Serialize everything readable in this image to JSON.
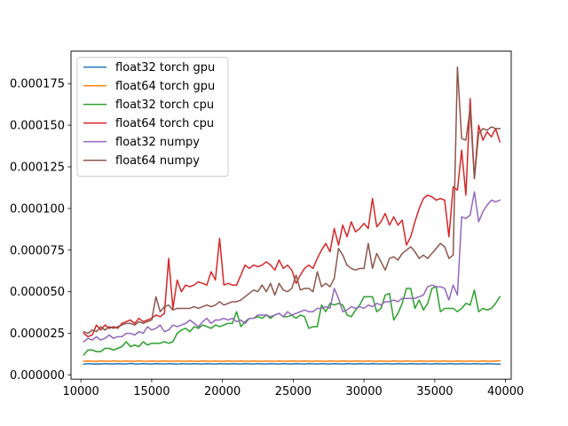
{
  "chart_data": {
    "type": "line",
    "xlim": [
      9300,
      40400
    ],
    "ylim": [
      -2.5e-06,
      0.0001945
    ],
    "x_ticks": [
      10000,
      15000,
      20000,
      25000,
      30000,
      35000,
      40000
    ],
    "y_ticks": [
      0,
      2.5e-05,
      5e-05,
      7.5e-05,
      0.0001,
      0.000125,
      0.00015,
      0.000175
    ],
    "x_tick_labels": [
      "10000",
      "15000",
      "20000",
      "25000",
      "30000",
      "35000",
      "40000"
    ],
    "y_tick_labels": [
      "0.000000",
      "0.000025",
      "0.000050",
      "0.000075",
      "0.000100",
      "0.000125",
      "0.000150",
      "0.000175"
    ],
    "grid": false,
    "legend_position": "upper-left",
    "x": [
      10200,
      10500,
      10800,
      11100,
      11400,
      11700,
      12000,
      12300,
      12600,
      12900,
      13200,
      13500,
      13800,
      14100,
      14400,
      14700,
      15000,
      15300,
      15600,
      15900,
      16200,
      16500,
      16800,
      17100,
      17400,
      17700,
      18000,
      18300,
      18600,
      18900,
      19200,
      19500,
      19800,
      20100,
      20400,
      20700,
      21000,
      21300,
      21600,
      21900,
      22200,
      22500,
      22800,
      23100,
      23400,
      23700,
      24000,
      24300,
      24600,
      24900,
      25200,
      25500,
      25800,
      26100,
      26400,
      26700,
      27000,
      27300,
      27600,
      27900,
      28200,
      28500,
      28800,
      29100,
      29400,
      29700,
      30000,
      30300,
      30600,
      30900,
      31200,
      31500,
      31800,
      32100,
      32400,
      32700,
      33000,
      33300,
      33600,
      33900,
      34200,
      34500,
      34800,
      35100,
      35400,
      35700,
      36000,
      36300,
      36600,
      36900,
      37200,
      37500,
      37800,
      38100,
      38400,
      38700,
      39000,
      39300,
      39600
    ],
    "series": [
      {
        "name": "float32 torch gpu",
        "color": "#1f77b4",
        "values": [
          6.5e-06,
          6.8e-06,
          6.6e-06,
          6.7e-06,
          6.6e-06,
          6.8e-06,
          6.7e-06,
          6.6e-06,
          6.8e-06,
          6.7e-06,
          6.6e-06,
          6.9e-06,
          6.7e-06,
          6.6e-06,
          6.8e-06,
          6.7e-06,
          6.6e-06,
          6.8e-06,
          6.7e-06,
          6.6e-06,
          6.8e-06,
          6.7e-06,
          6.5e-06,
          6.8e-06,
          6.7e-06,
          6.6e-06,
          6.8e-06,
          6.7e-06,
          6.6e-06,
          6.8e-06,
          6.7e-06,
          6.6e-06,
          6.8e-06,
          6.7e-06,
          6.6e-06,
          6.8e-06,
          6.7e-06,
          6.6e-06,
          6.8e-06,
          6.7e-06,
          6.6e-06,
          6.8e-06,
          6.7e-06,
          6.6e-06,
          6.8e-06,
          6.7e-06,
          6.6e-06,
          6.8e-06,
          6.7e-06,
          6.6e-06,
          6.8e-06,
          6.7e-06,
          6.6e-06,
          6.8e-06,
          6.7e-06,
          6.6e-06,
          6.8e-06,
          6.7e-06,
          6.6e-06,
          6.8e-06,
          6.7e-06,
          6.6e-06,
          6.8e-06,
          6.7e-06,
          6.6e-06,
          6.8e-06,
          6.7e-06,
          6.6e-06,
          6.8e-06,
          6.7e-06,
          6.6e-06,
          6.8e-06,
          6.7e-06,
          6.6e-06,
          6.8e-06,
          6.7e-06,
          6.6e-06,
          6.8e-06,
          6.7e-06,
          6.6e-06,
          6.8e-06,
          6.7e-06,
          6.6e-06,
          6.8e-06,
          6.7e-06,
          6.6e-06,
          6.8e-06,
          6.7e-06,
          6.6e-06,
          6.8e-06,
          6.7e-06,
          6.6e-06,
          6.8e-06,
          6.7e-06,
          6.6e-06,
          6.8e-06,
          6.7e-06,
          6.6e-06,
          6.5e-06
        ]
      },
      {
        "name": "float64 torch gpu",
        "color": "#ff7f0e",
        "values": [
          8.2e-06,
          8.4e-06,
          8.3e-06,
          8.2e-06,
          8.4e-06,
          8.3e-06,
          8.2e-06,
          8.5e-06,
          8.3e-06,
          8.2e-06,
          8.4e-06,
          8.3e-06,
          8.2e-06,
          8.5e-06,
          8.3e-06,
          8.2e-06,
          8.4e-06,
          8.3e-06,
          8.2e-06,
          8.4e-06,
          8.3e-06,
          8.2e-06,
          8.4e-06,
          8.3e-06,
          8.2e-06,
          8.4e-06,
          8.3e-06,
          8.2e-06,
          8.4e-06,
          8.3e-06,
          8.2e-06,
          8.4e-06,
          8.3e-06,
          8.2e-06,
          8.4e-06,
          8.3e-06,
          8.2e-06,
          8.4e-06,
          8.3e-06,
          8.2e-06,
          8.4e-06,
          8.3e-06,
          8.2e-06,
          8.4e-06,
          8.3e-06,
          8.2e-06,
          8.4e-06,
          8.3e-06,
          8.2e-06,
          8.4e-06,
          8.3e-06,
          8.2e-06,
          8.4e-06,
          8.3e-06,
          8.2e-06,
          8.4e-06,
          8.3e-06,
          8.2e-06,
          8.4e-06,
          8.3e-06,
          8.2e-06,
          8.4e-06,
          8.3e-06,
          8.2e-06,
          8.4e-06,
          8.3e-06,
          8.2e-06,
          8.4e-06,
          8.3e-06,
          8.2e-06,
          8.4e-06,
          8.3e-06,
          8.2e-06,
          8.4e-06,
          8.3e-06,
          8.2e-06,
          8.4e-06,
          8.3e-06,
          8.2e-06,
          8.4e-06,
          8.3e-06,
          8.2e-06,
          8.4e-06,
          8.3e-06,
          8.2e-06,
          8.4e-06,
          8.3e-06,
          8.2e-06,
          8.4e-06,
          8.3e-06,
          8.2e-06,
          8.4e-06,
          8.3e-06,
          8.2e-06,
          8.4e-06,
          8.3e-06,
          8.2e-06,
          8.4e-06,
          8.5e-06
        ]
      },
      {
        "name": "float32 torch cpu",
        "color": "#2ca02c",
        "values": [
          1.2e-05,
          1.5e-05,
          1.5e-05,
          1.4e-05,
          1.4e-05,
          1.6e-05,
          1.6e-05,
          1.5e-05,
          1.6e-05,
          1.7e-05,
          2e-05,
          1.7e-05,
          1.8e-05,
          1.7e-05,
          2e-05,
          1.8e-05,
          1.9e-05,
          1.9e-05,
          1.9e-05,
          2e-05,
          1.9e-05,
          2e-05,
          2.5e-05,
          2.7e-05,
          2.8e-05,
          2.6e-05,
          2.9e-05,
          2.8e-05,
          3e-05,
          2.9e-05,
          2.8e-05,
          3e-05,
          2.9e-05,
          3e-05,
          3.1e-05,
          3.1e-05,
          3.8e-05,
          2.9e-05,
          3.2e-05,
          3.4e-05,
          3.4e-05,
          3.5e-05,
          3.4e-05,
          3.6e-05,
          3.4e-05,
          3.6e-05,
          3.7e-05,
          3.5e-05,
          3.5e-05,
          3.6e-05,
          3.4e-05,
          3.6e-05,
          3.5e-05,
          2.8e-05,
          2.9e-05,
          2.9e-05,
          4.2e-05,
          3.8e-05,
          4.3e-05,
          4.2e-05,
          4.3e-05,
          4.2e-05,
          3.6e-05,
          3.5e-05,
          3.9e-05,
          4.2e-05,
          4.7e-05,
          4.7e-05,
          4.7e-05,
          3.8e-05,
          4e-05,
          4.8e-05,
          4.9e-05,
          3.3e-05,
          3.7e-05,
          4.3e-05,
          5.2e-05,
          5.2e-05,
          4e-05,
          4.5e-05,
          3.9e-05,
          4.3e-05,
          5.2e-05,
          5.3e-05,
          3.8e-05,
          4e-05,
          4e-05,
          4e-05,
          3.8e-05,
          4e-05,
          4.3e-05,
          4.2e-05,
          5.1e-05,
          3.8e-05,
          4e-05,
          3.9e-05,
          4e-05,
          4.3e-05,
          4.7e-05
        ]
      },
      {
        "name": "float64 torch cpu",
        "color": "#d62728",
        "values": [
          2.5e-05,
          2.3e-05,
          2.4e-05,
          3e-05,
          2.7e-05,
          3e-05,
          2.8e-05,
          2.9e-05,
          2.8e-05,
          3.1e-05,
          3.2e-05,
          3.3e-05,
          3.1e-05,
          3.4e-05,
          3.2e-05,
          3.3e-05,
          3.4e-05,
          3.6e-05,
          3.5e-05,
          3.7e-05,
          7e-05,
          4e-05,
          5.7e-05,
          5e-05,
          5.4e-05,
          5.3e-05,
          5.4e-05,
          5.6e-05,
          5.5e-05,
          5.4e-05,
          6.2e-05,
          5.7e-05,
          8.2e-05,
          5.4e-05,
          5.5e-05,
          5.4e-05,
          5.4e-05,
          6e-05,
          6.6e-05,
          6.4e-05,
          6.6e-05,
          6.5e-05,
          6.6e-05,
          6.8e-05,
          6.6e-05,
          6.3e-05,
          6.9e-05,
          6.4e-05,
          6.6e-05,
          6.3e-05,
          5.5e-05,
          6e-05,
          6.4e-05,
          6.6e-05,
          6.4e-05,
          7e-05,
          7.5e-05,
          7.9e-05,
          7.4e-05,
          8.8e-05,
          7.8e-05,
          9e-05,
          8.3e-05,
          9.2e-05,
          8.6e-05,
          8.8e-05,
          9.1e-05,
          8.8e-05,
          0.000106,
          8.9e-05,
          9.2e-05,
          9.7e-05,
          9e-05,
          9.5e-05,
          9e-05,
          9.3e-05,
          7.8e-05,
          8.3e-05,
          9.2e-05,
          0.0001,
          0.000106,
          0.000108,
          0.000107,
          0.000105,
          0.000106,
          0.000105,
          8.3e-05,
          0.000113,
          0.000111,
          0.000135,
          0.000108,
          0.000166,
          0.000118,
          0.00015,
          0.000141,
          0.000146,
          0.000143,
          0.000148,
          0.00014
        ]
      },
      {
        "name": "float32 numpy",
        "color": "#9467bd",
        "values": [
          2e-05,
          2.2e-05,
          2.1e-05,
          2.3e-05,
          2.1e-05,
          2.2e-05,
          2.4e-05,
          2.2e-05,
          2.3e-05,
          2.3e-05,
          2.5e-05,
          2.5e-05,
          2.4e-05,
          2.6e-05,
          2.5e-05,
          2.9e-05,
          2.7e-05,
          2.8e-05,
          3e-05,
          2.6e-05,
          2.7e-05,
          3e-05,
          2.9e-05,
          3e-05,
          3.1e-05,
          3.3e-05,
          3.1e-05,
          2.9e-05,
          3.2e-05,
          3.4e-05,
          3.1e-05,
          3.3e-05,
          3.3e-05,
          3.4e-05,
          3.3e-05,
          3.4e-05,
          3.2e-05,
          3.3e-05,
          3.1e-05,
          3.4e-05,
          3.4e-05,
          3.6e-05,
          3.6e-05,
          3.6e-05,
          3.5e-05,
          3.6e-05,
          3.7e-05,
          3.5e-05,
          3.8e-05,
          3.6e-05,
          3.7e-05,
          3.8e-05,
          3.9e-05,
          3.8e-05,
          3.8e-05,
          4e-05,
          4e-05,
          4.1e-05,
          4e-05,
          5.2e-05,
          4.6e-05,
          3.8e-05,
          3.9e-05,
          4.1e-05,
          4e-05,
          4.1e-05,
          4e-05,
          4.2e-05,
          4.1e-05,
          4.3e-05,
          4.2e-05,
          4.4e-05,
          4.4e-05,
          4.5e-05,
          4.4e-05,
          4.6e-05,
          4.6e-05,
          4.6e-05,
          4.6e-05,
          4.7e-05,
          4.8e-05,
          5.3e-05,
          5.4e-05,
          5.3e-05,
          5.3e-05,
          5.2e-05,
          4.5e-05,
          5.4e-05,
          4.8e-05,
          9.5e-05,
          9.4e-05,
          9.6e-05,
          0.00011,
          9.2e-05,
          9.8e-05,
          0.000102,
          0.000105,
          0.000104,
          0.000105
        ]
      },
      {
        "name": "float64 numpy",
        "color": "#8c564b",
        "values": [
          2.6e-05,
          2.5e-05,
          2.7e-05,
          2.6e-05,
          2.9e-05,
          2.7e-05,
          2.9e-05,
          2.8e-05,
          2.9e-05,
          3e-05,
          3.1e-05,
          3.1e-05,
          3e-05,
          3.2e-05,
          3.1e-05,
          3.2e-05,
          3.3e-05,
          4.7e-05,
          3.8e-05,
          4.1e-05,
          4.2e-05,
          3.9e-05,
          4e-05,
          4e-05,
          4e-05,
          4e-05,
          4.1e-05,
          4e-05,
          4.1e-05,
          4.2e-05,
          4.1e-05,
          4.2e-05,
          4.4e-05,
          4.2e-05,
          4.3e-05,
          4.4e-05,
          4.4e-05,
          4.5e-05,
          4.7e-05,
          4.9e-05,
          5.1e-05,
          5e-05,
          5.4e-05,
          5e-05,
          5.5e-05,
          4.8e-05,
          5.5e-05,
          5.1e-05,
          5e-05,
          5.2e-05,
          6e-05,
          5.1e-05,
          5.2e-05,
          5.2e-05,
          5e-05,
          6.2e-05,
          5.3e-05,
          5.5e-05,
          5.3e-05,
          5.8e-05,
          7.6e-05,
          7.2e-05,
          6.6e-05,
          6.4e-05,
          6.3e-05,
          6.4e-05,
          6.4e-05,
          7.9e-05,
          6.4e-05,
          7.3e-05,
          6.8e-05,
          6.3e-05,
          7e-05,
          7.1e-05,
          6.9e-05,
          7.3e-05,
          7.5e-05,
          7.7e-05,
          7.4e-05,
          7e-05,
          7.2e-05,
          7e-05,
          7.3e-05,
          7.6e-05,
          7.9e-05,
          7.7e-05,
          7e-05,
          7.2e-05,
          0.000185,
          0.000142,
          0.000141,
          0.00016,
          0.000118,
          0.000145,
          0.000148,
          0.000147,
          0.000149,
          0.000148,
          0.000148
        ]
      }
    ]
  }
}
